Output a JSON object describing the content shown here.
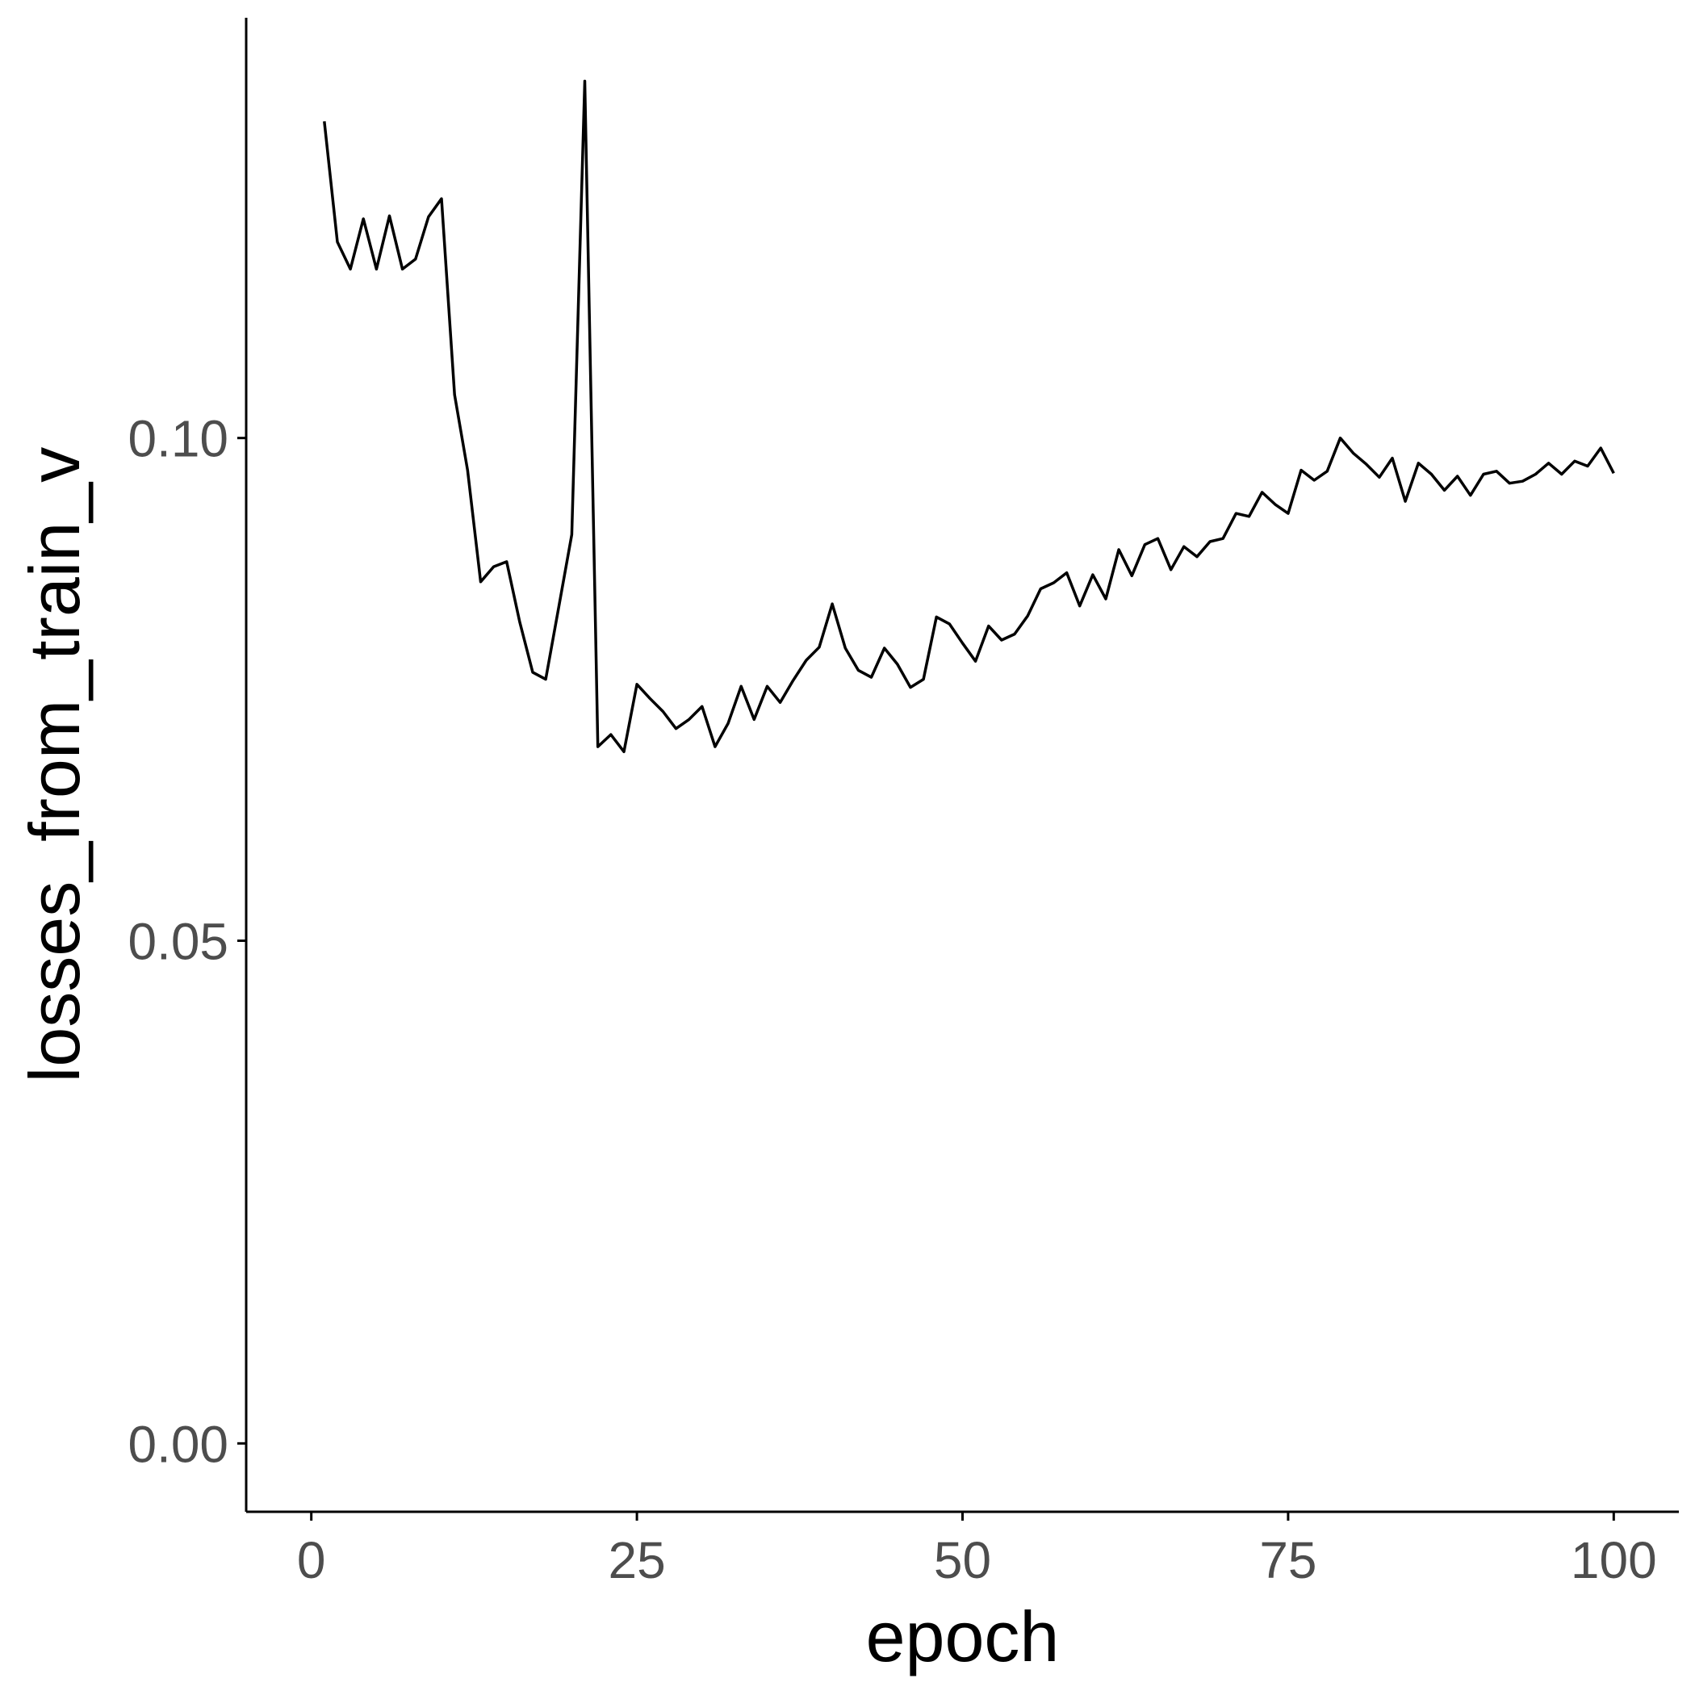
{
  "chart_data": {
    "type": "line",
    "title": "",
    "xlabel": "epoch",
    "ylabel": "losses_from_train_v",
    "xlim": [
      -5,
      105
    ],
    "ylim": [
      -0.0068,
      0.1418
    ],
    "x_ticks": [
      0,
      25,
      50,
      75,
      100
    ],
    "x_tick_labels": [
      "0",
      "25",
      "50",
      "75",
      "100"
    ],
    "y_ticks": [
      0.0,
      0.05,
      0.1
    ],
    "y_tick_labels": [
      "0.00",
      "0.05",
      "0.10"
    ],
    "grid": false,
    "legend": "none",
    "colors": {
      "line": "#000000",
      "tick_label": "#4d4d4d",
      "axis": "#000000"
    },
    "series": [
      {
        "x": [
          1,
          2,
          3,
          4,
          5,
          6,
          7,
          8,
          9,
          10,
          11,
          12,
          13,
          14,
          15,
          16,
          17,
          18,
          19,
          20,
          21,
          22,
          23,
          24,
          25,
          26,
          27,
          28,
          29,
          30,
          31,
          32,
          33,
          34,
          35,
          36,
          37,
          38,
          39,
          40,
          41,
          42,
          43,
          44,
          45,
          46,
          47,
          48,
          49,
          50,
          51,
          52,
          53,
          54,
          55,
          56,
          57,
          58,
          59,
          60,
          61,
          62,
          63,
          64,
          65,
          66,
          67,
          68,
          69,
          70,
          71,
          72,
          73,
          74,
          75,
          76,
          77,
          78,
          79,
          80,
          81,
          82,
          83,
          84,
          85,
          86,
          87,
          88,
          89,
          90,
          91,
          92,
          93,
          94,
          95,
          96,
          97,
          98,
          99,
          100
        ],
        "values": [
          0.1315,
          0.1195,
          0.1168,
          0.1218,
          0.1168,
          0.1221,
          0.1168,
          0.1178,
          0.122,
          0.1238,
          0.1043,
          0.0968,
          0.0857,
          0.0872,
          0.0877,
          0.0817,
          0.0767,
          0.076,
          0.0832,
          0.0904,
          0.1355,
          0.0693,
          0.0705,
          0.0688,
          0.0755,
          0.0741,
          0.0728,
          0.0711,
          0.072,
          0.0733,
          0.0693,
          0.0716,
          0.0753,
          0.072,
          0.0753,
          0.0737,
          0.0759,
          0.0779,
          0.0792,
          0.0835,
          0.0791,
          0.0769,
          0.0762,
          0.0791,
          0.0775,
          0.0752,
          0.076,
          0.0822,
          0.0815,
          0.0796,
          0.0778,
          0.0813,
          0.0799,
          0.0805,
          0.0823,
          0.085,
          0.0856,
          0.0866,
          0.0833,
          0.0864,
          0.084,
          0.0889,
          0.0863,
          0.0894,
          0.09,
          0.0869,
          0.0892,
          0.0882,
          0.0897,
          0.09,
          0.0925,
          0.0922,
          0.0946,
          0.0934,
          0.0925,
          0.0968,
          0.0958,
          0.0967,
          0.1,
          0.0985,
          0.0974,
          0.0961,
          0.098,
          0.0937,
          0.0975,
          0.0964,
          0.0948,
          0.0962,
          0.0943,
          0.0964,
          0.0967,
          0.0955,
          0.0957,
          0.0964,
          0.0975,
          0.0964,
          0.0977,
          0.0972,
          0.099,
          0.0965
        ]
      }
    ]
  }
}
